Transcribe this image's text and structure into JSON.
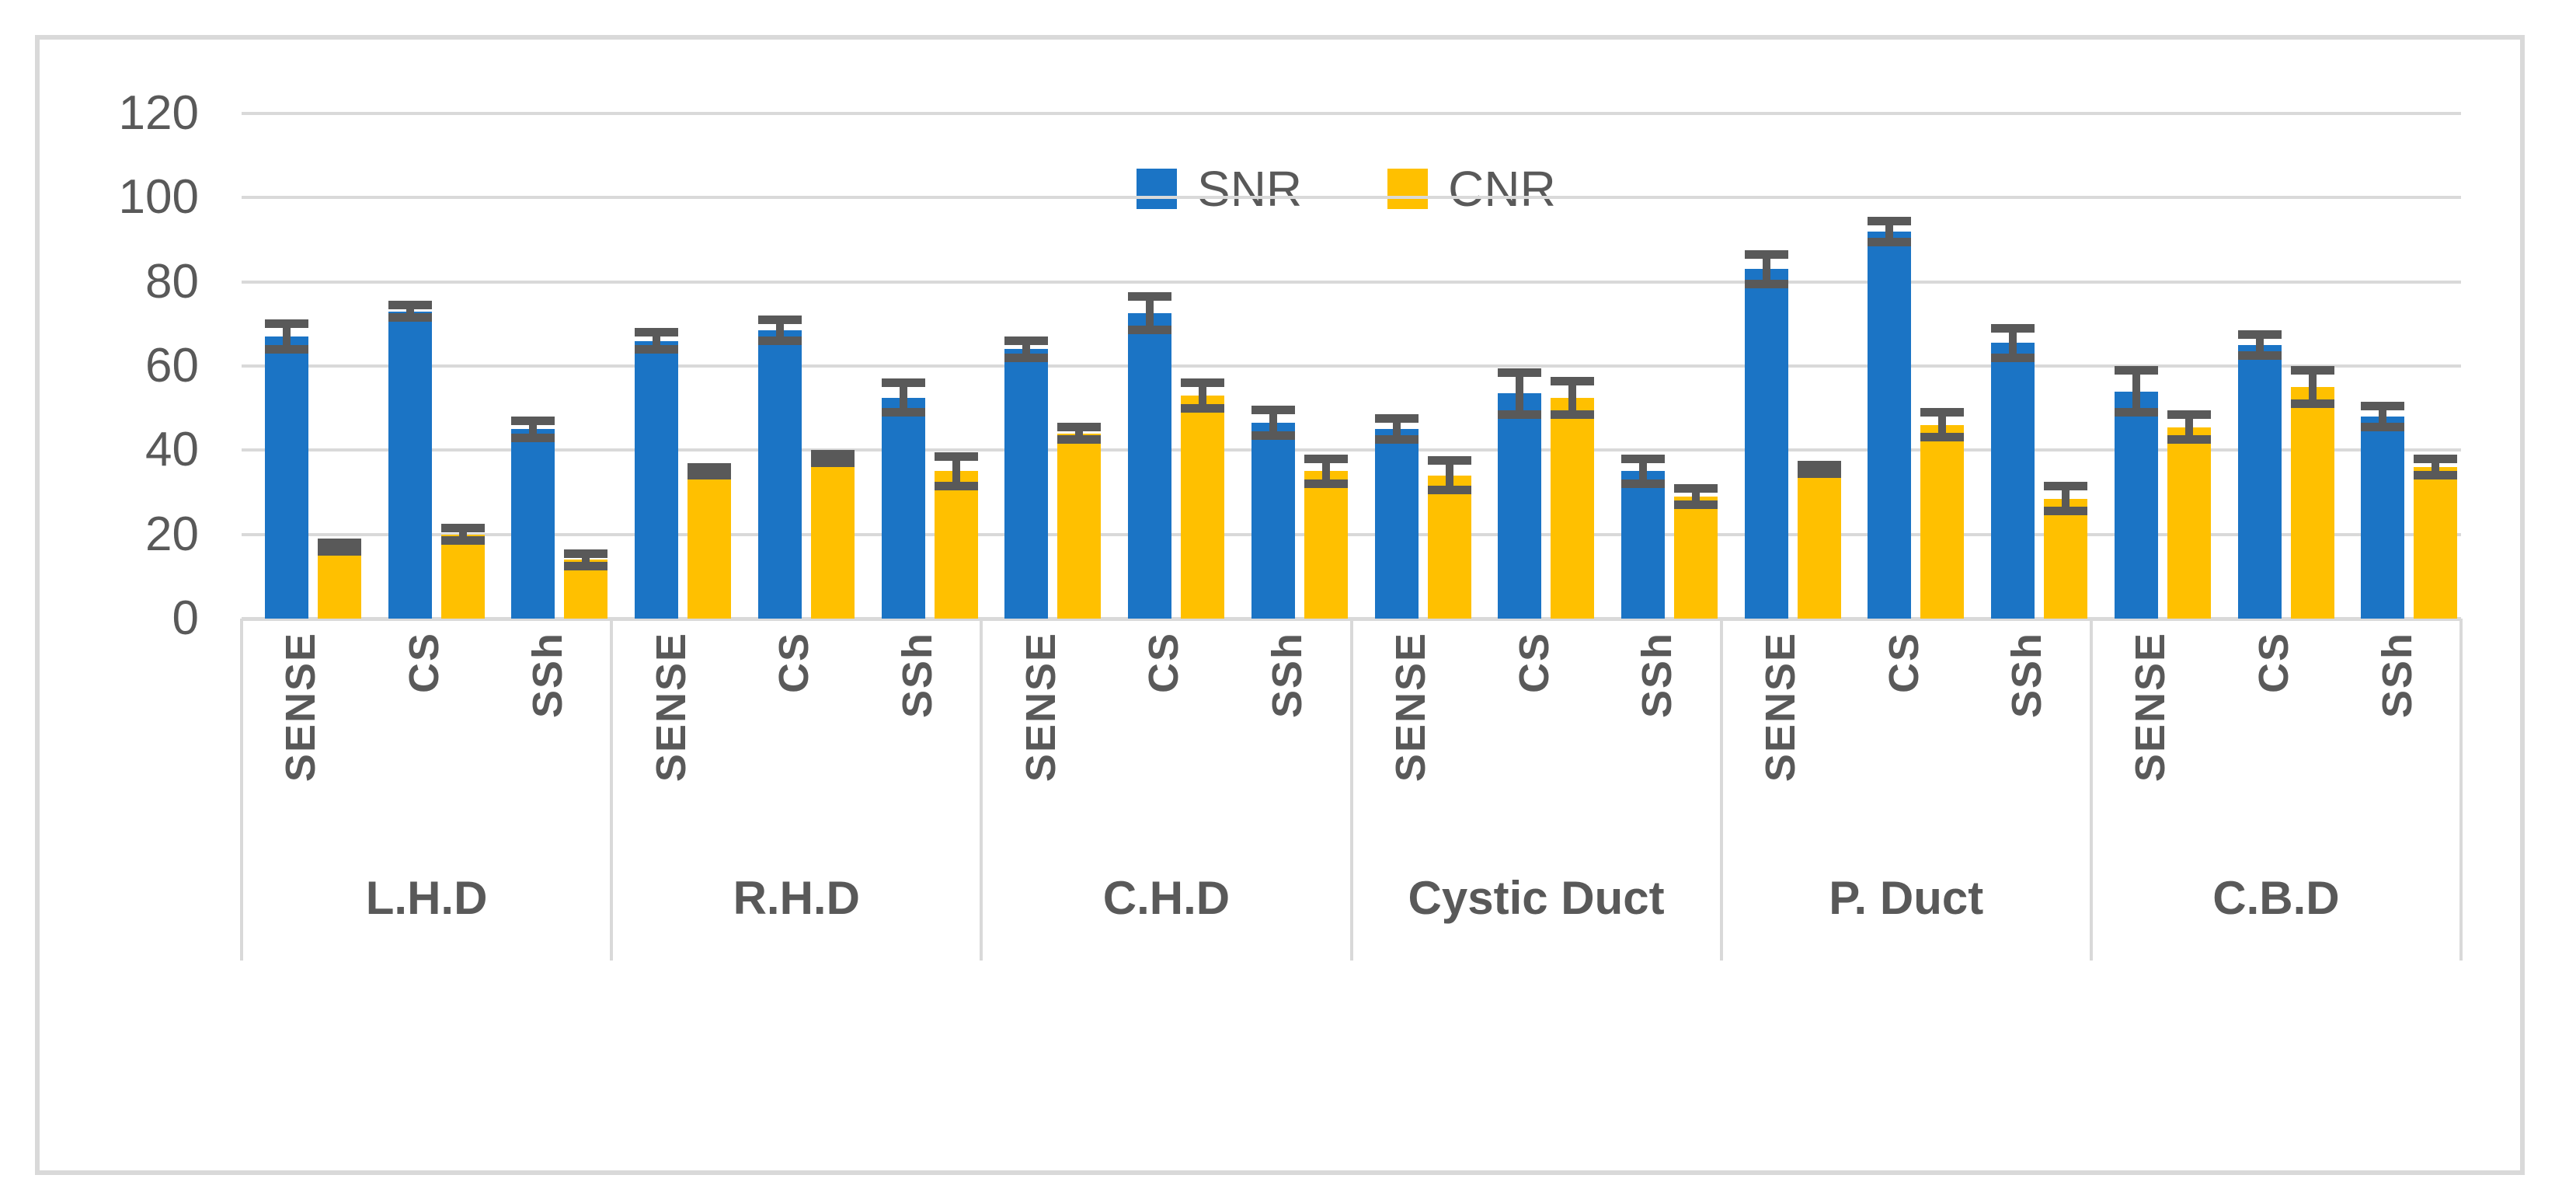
{
  "chart_data": {
    "type": "bar",
    "title": "",
    "xlabel": "",
    "ylabel": "",
    "ylim": [
      0,
      120
    ],
    "yticks": [
      0,
      20,
      40,
      60,
      80,
      100,
      120
    ],
    "grid": true,
    "legend_position": "top-center",
    "error_bars": true,
    "colors": {
      "snr": "#1B74C5",
      "cnr": "#FFC000",
      "grid": "#D9D9D9",
      "frame_border": "#D9D9D9",
      "text": "#595959",
      "error_bar": "#595959",
      "background": "#FFFFFF"
    },
    "series": [
      {
        "name": "SNR",
        "key": "snr",
        "color": "#1B74C5"
      },
      {
        "name": "CNR",
        "key": "cnr",
        "color": "#FFC000"
      }
    ],
    "sequences": [
      "SENSE",
      "CS",
      "SSh"
    ],
    "groups": [
      {
        "group": "L.H.D",
        "items": [
          {
            "label": "SENSE",
            "snr": 67,
            "snr_err": 4,
            "cnr": 17,
            "cnr_err": 2
          },
          {
            "label": "CS",
            "snr": 73,
            "snr_err": 2.5,
            "cnr": 20,
            "cnr_err": 2.5
          },
          {
            "label": "SSh",
            "snr": 45,
            "snr_err": 3,
            "cnr": 14,
            "cnr_err": 2.5
          }
        ]
      },
      {
        "group": "R.H.D",
        "items": [
          {
            "label": "SENSE",
            "snr": 66,
            "snr_err": 3,
            "cnr": 35,
            "cnr_err": 2
          },
          {
            "label": "CS",
            "snr": 68.5,
            "snr_err": 3.5,
            "cnr": 38,
            "cnr_err": 2
          },
          {
            "label": "SSh",
            "snr": 52.5,
            "snr_err": 4.5,
            "cnr": 35,
            "cnr_err": 4.5
          }
        ]
      },
      {
        "group": "C.H.D",
        "items": [
          {
            "label": "SENSE",
            "snr": 64,
            "snr_err": 3,
            "cnr": 44,
            "cnr_err": 2.5
          },
          {
            "label": "CS",
            "snr": 72.5,
            "snr_err": 5,
            "cnr": 53,
            "cnr_err": 4
          },
          {
            "label": "SSh",
            "snr": 46.5,
            "snr_err": 4,
            "cnr": 35,
            "cnr_err": 4
          }
        ]
      },
      {
        "group": "Cystic Duct",
        "items": [
          {
            "label": "SENSE",
            "snr": 45,
            "snr_err": 3.5,
            "cnr": 34,
            "cnr_err": 4.5
          },
          {
            "label": "CS",
            "snr": 53.5,
            "snr_err": 6,
            "cnr": 52.5,
            "cnr_err": 5
          },
          {
            "label": "SSh",
            "snr": 35,
            "snr_err": 4,
            "cnr": 29,
            "cnr_err": 3
          }
        ]
      },
      {
        "group": "P. Duct",
        "items": [
          {
            "label": "SENSE",
            "snr": 83,
            "snr_err": 4.5,
            "cnr": 35.5,
            "cnr_err": 2
          },
          {
            "label": "CS",
            "snr": 92,
            "snr_err": 3.5,
            "cnr": 46,
            "cnr_err": 4
          },
          {
            "label": "SSh",
            "snr": 65.5,
            "snr_err": 4.5,
            "cnr": 28.5,
            "cnr_err": 4
          }
        ]
      },
      {
        "group": "C.B.D",
        "items": [
          {
            "label": "SENSE",
            "snr": 54,
            "snr_err": 6,
            "cnr": 45.5,
            "cnr_err": 4
          },
          {
            "label": "CS",
            "snr": 65,
            "snr_err": 3.5,
            "cnr": 55,
            "cnr_err": 5
          },
          {
            "label": "SSh",
            "snr": 48,
            "snr_err": 3.5,
            "cnr": 36,
            "cnr_err": 3
          }
        ]
      }
    ]
  }
}
